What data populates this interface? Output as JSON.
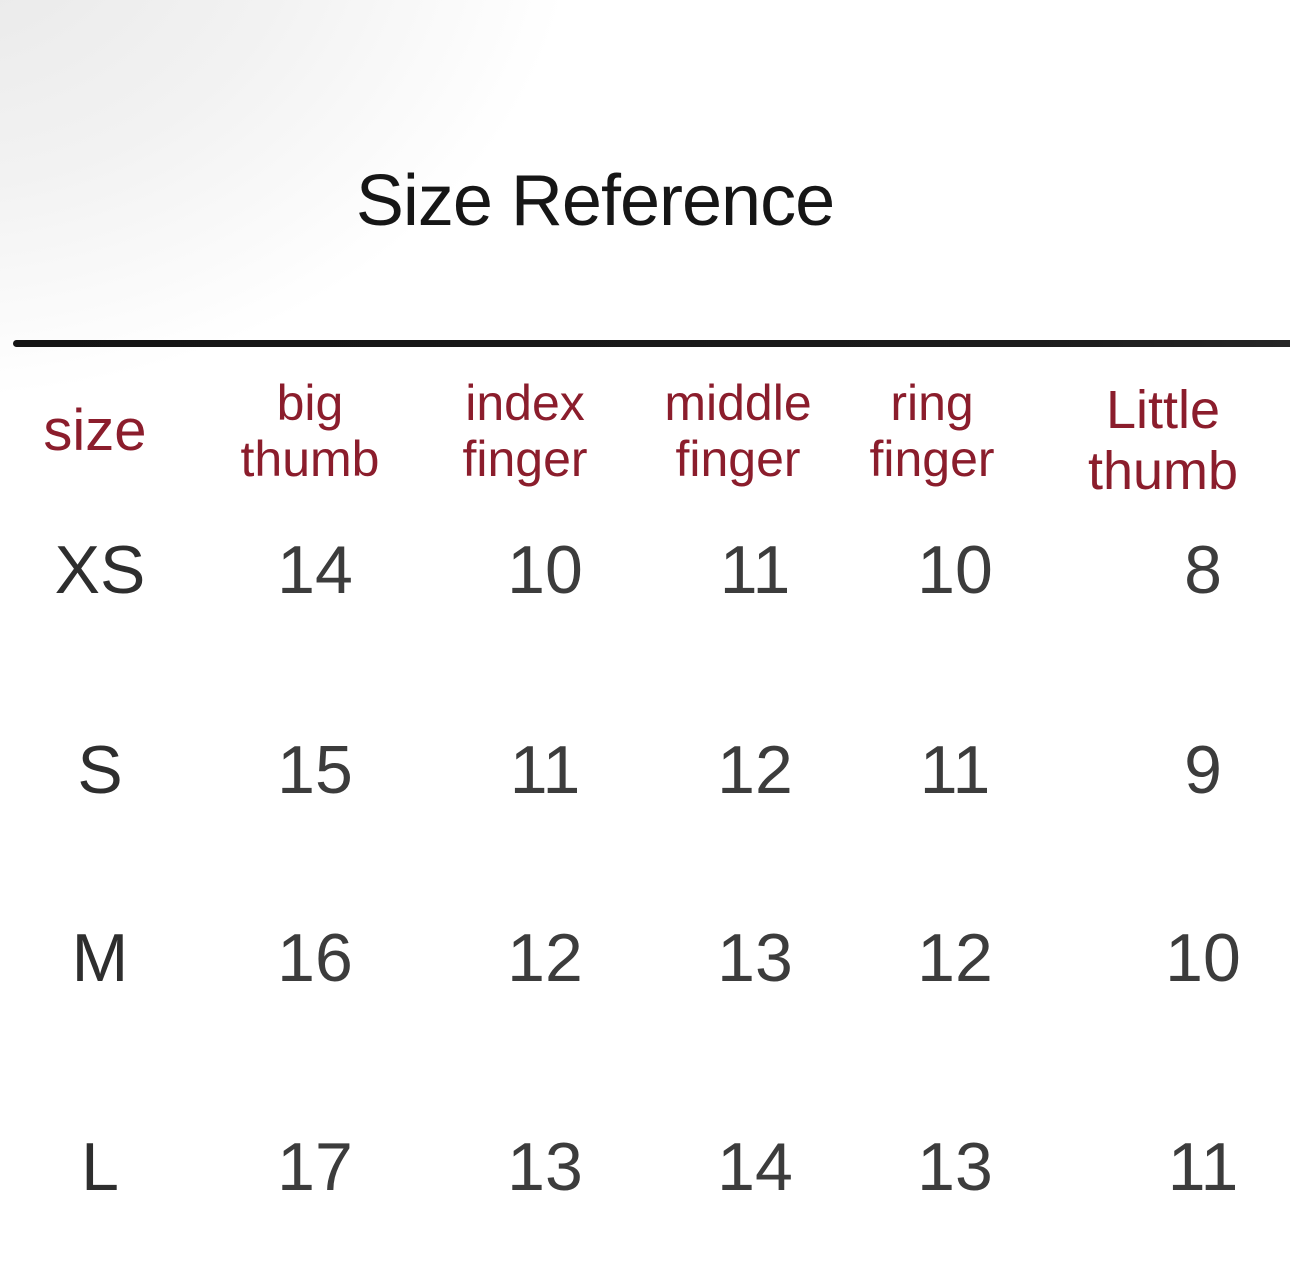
{
  "page": {
    "title": "Size Reference"
  },
  "colors": {
    "header_red": "#8b1d2c",
    "title_black": "#161616",
    "value_gray": "#3c3c3c",
    "rule_black": "#1b1b1b",
    "background": "#ffffff"
  },
  "table": {
    "columns": [
      {
        "key": "size",
        "line1": "size",
        "line2": ""
      },
      {
        "key": "big_thumb",
        "line1": "big",
        "line2": "thumb"
      },
      {
        "key": "index_finger",
        "line1": "index",
        "line2": "finger"
      },
      {
        "key": "middle_finger",
        "line1": "middle",
        "line2": "finger"
      },
      {
        "key": "ring_finger",
        "line1": "ring",
        "line2": "finger"
      },
      {
        "key": "little_thumb",
        "line1": "Little",
        "line2": "thumb"
      }
    ],
    "rows": [
      {
        "label": "XS",
        "big_thumb": "14",
        "index_finger": "10",
        "middle_finger": "11",
        "ring_finger": "10",
        "little_thumb": "8"
      },
      {
        "label": "S",
        "big_thumb": "15",
        "index_finger": "11",
        "middle_finger": "12",
        "ring_finger": "11",
        "little_thumb": "9"
      },
      {
        "label": "M",
        "big_thumb": "16",
        "index_finger": "12",
        "middle_finger": "13",
        "ring_finger": "12",
        "little_thumb": "10"
      },
      {
        "label": "L",
        "big_thumb": "17",
        "index_finger": "13",
        "middle_finger": "14",
        "ring_finger": "13",
        "little_thumb": "11"
      }
    ]
  },
  "chart_data": {
    "type": "table",
    "title": "Size Reference",
    "columns": [
      "size",
      "big thumb",
      "index finger",
      "middle finger",
      "ring finger",
      "Little thumb"
    ],
    "rows": [
      [
        "XS",
        14,
        10,
        11,
        10,
        8
      ],
      [
        "S",
        15,
        11,
        12,
        11,
        9
      ],
      [
        "M",
        16,
        12,
        13,
        12,
        10
      ],
      [
        "L",
        17,
        13,
        14,
        13,
        11
      ]
    ]
  }
}
